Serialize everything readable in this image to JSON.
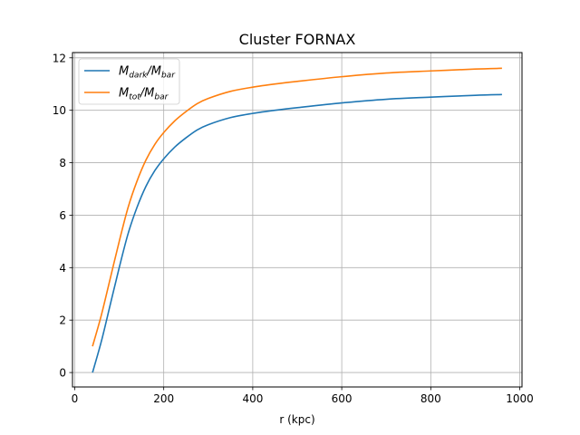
{
  "chart_data": {
    "type": "line",
    "title": "Cluster FORNAX",
    "xlabel": "r (kpc)",
    "ylabel": "",
    "xlim": [
      -5,
      1005
    ],
    "ylim": [
      -0.55,
      12.2
    ],
    "xticks": [
      0,
      200,
      400,
      600,
      800,
      1000
    ],
    "xtick_labels": [
      "0",
      "200",
      "400",
      "600",
      "800",
      "1000"
    ],
    "yticks": [
      0,
      2,
      4,
      6,
      8,
      10,
      12
    ],
    "ytick_labels": [
      "0",
      "2",
      "4",
      "6",
      "8",
      "10",
      "12"
    ],
    "grid": true,
    "legend_position": "top-left",
    "x": [
      40,
      60,
      80,
      100,
      120,
      140,
      160,
      180,
      200,
      225,
      250,
      275,
      300,
      350,
      400,
      450,
      500,
      600,
      700,
      800,
      900,
      960
    ],
    "series": [
      {
        "name": "M_dark/M_bar",
        "legend_main": "M",
        "legend_sub": "dark",
        "legend_mid": "/M",
        "legend_sub2": "bar",
        "color": "#1f77b4",
        "values": [
          0.0,
          1.2,
          2.6,
          4.0,
          5.3,
          6.3,
          7.1,
          7.7,
          8.15,
          8.6,
          8.95,
          9.25,
          9.45,
          9.72,
          9.88,
          10.0,
          10.1,
          10.28,
          10.42,
          10.5,
          10.57,
          10.6
        ]
      },
      {
        "name": "M_tot/M_bar",
        "legend_main": "M",
        "legend_sub": "tot",
        "legend_mid": "/M",
        "legend_sub2": "bar",
        "color": "#ff7f0e",
        "values": [
          1.0,
          2.2,
          3.6,
          5.0,
          6.3,
          7.3,
          8.1,
          8.7,
          9.15,
          9.6,
          9.95,
          10.25,
          10.45,
          10.72,
          10.88,
          11.0,
          11.1,
          11.28,
          11.42,
          11.5,
          11.57,
          11.6
        ]
      }
    ]
  }
}
